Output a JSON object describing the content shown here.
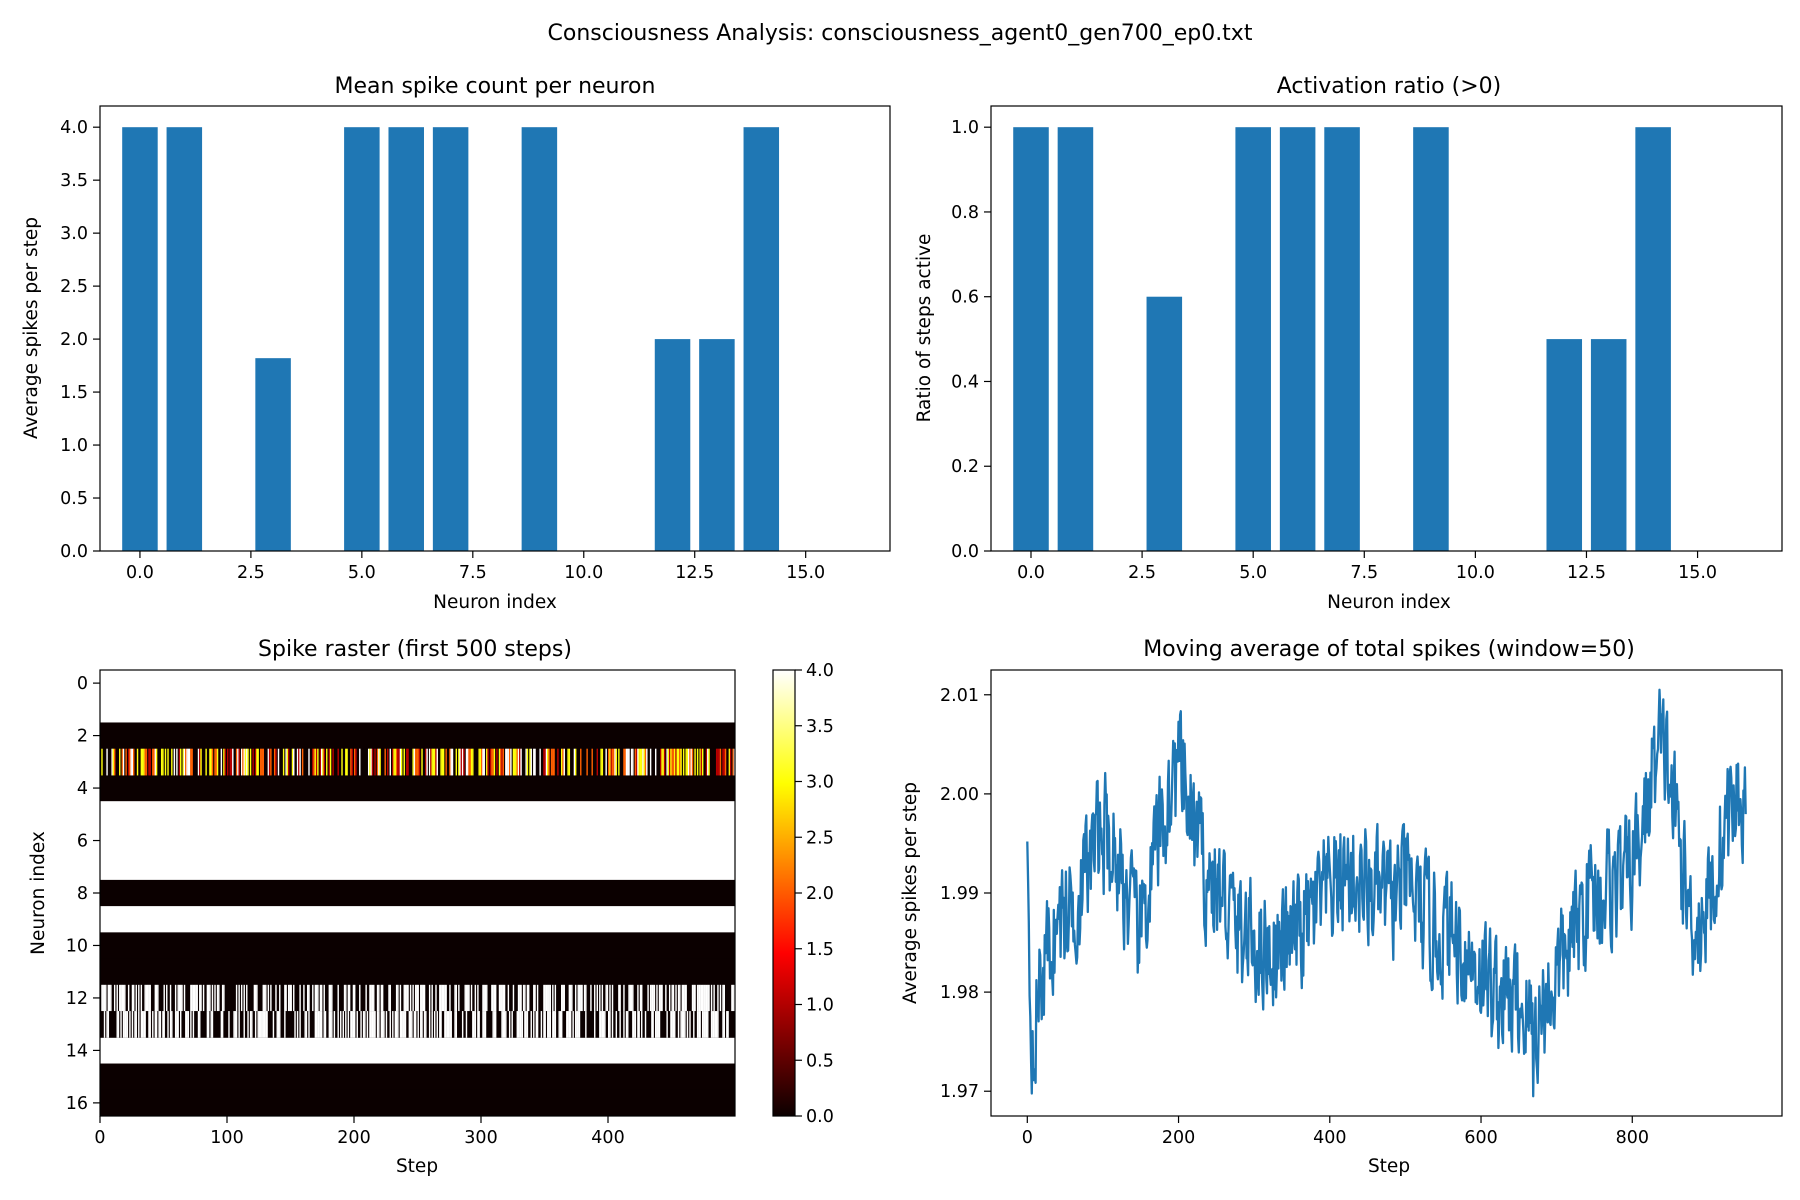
{
  "figure": {
    "title": "Consciousness Analysis: consciousness_agent0_gen700_ep0.txt"
  },
  "colors": {
    "bar": "#1f77b4",
    "line": "#1f77b4"
  },
  "chart_data": [
    {
      "type": "bar",
      "title": "Mean spike count per neuron",
      "xlabel": "Neuron index",
      "ylabel": "Average spikes per step",
      "categories": [
        0,
        1,
        2,
        3,
        4,
        5,
        6,
        7,
        8,
        9,
        10,
        11,
        12,
        13,
        14,
        15,
        16
      ],
      "values": [
        4,
        4,
        0,
        1.82,
        0,
        4,
        4,
        4,
        0,
        4,
        0,
        0,
        2,
        2,
        4,
        0,
        0
      ],
      "xlim": [
        -0.9,
        16.9
      ],
      "ylim": [
        0,
        4.2
      ],
      "xticks": [
        0,
        2.5,
        5,
        7.5,
        10,
        12.5,
        15
      ],
      "xtick_labels": [
        "0.0",
        "2.5",
        "5.0",
        "7.5",
        "10.0",
        "12.5",
        "15.0"
      ],
      "yticks": [
        0,
        0.5,
        1,
        1.5,
        2,
        2.5,
        3,
        3.5,
        4
      ],
      "ytick_labels": [
        "0.0",
        "0.5",
        "1.0",
        "1.5",
        "2.0",
        "2.5",
        "3.0",
        "3.5",
        "4.0"
      ],
      "grid": false
    },
    {
      "type": "bar",
      "title": "Activation ratio (>0)",
      "xlabel": "Neuron index",
      "ylabel": "Ratio of steps active",
      "categories": [
        0,
        1,
        2,
        3,
        4,
        5,
        6,
        7,
        8,
        9,
        10,
        11,
        12,
        13,
        14,
        15,
        16
      ],
      "values": [
        1,
        1,
        0,
        0.6,
        0,
        1,
        1,
        1,
        0,
        1,
        0,
        0,
        0.5,
        0.5,
        1,
        0,
        0
      ],
      "xlim": [
        -0.9,
        16.9
      ],
      "ylim": [
        0,
        1.05
      ],
      "xticks": [
        0,
        2.5,
        5,
        7.5,
        10,
        12.5,
        15
      ],
      "xtick_labels": [
        "0.0",
        "2.5",
        "5.0",
        "7.5",
        "10.0",
        "12.5",
        "15.0"
      ],
      "yticks": [
        0,
        0.2,
        0.4,
        0.6,
        0.8,
        1.0
      ],
      "ytick_labels": [
        "0.0",
        "0.2",
        "0.4",
        "0.6",
        "0.8",
        "1.0"
      ],
      "grid": false
    },
    {
      "type": "heatmap",
      "title": "Spike raster (first 500 steps)",
      "xlabel": "Step",
      "ylabel": "Neuron index",
      "steps": 500,
      "neurons": 17,
      "colormap": "hot",
      "color_range": [
        0,
        4
      ],
      "constant_rows": [
        {
          "neuron": 0,
          "value": 4
        },
        {
          "neuron": 1,
          "value": 4
        },
        {
          "neuron": 2,
          "value": 0
        },
        {
          "neuron": 4,
          "value": 0
        },
        {
          "neuron": 5,
          "value": 4
        },
        {
          "neuron": 6,
          "value": 4
        },
        {
          "neuron": 7,
          "value": 4
        },
        {
          "neuron": 8,
          "value": 0
        },
        {
          "neuron": 9,
          "value": 4
        },
        {
          "neuron": 10,
          "value": 0
        },
        {
          "neuron": 11,
          "value": 0
        },
        {
          "neuron": 14,
          "value": 4
        },
        {
          "neuron": 15,
          "value": 0
        },
        {
          "neuron": 16,
          "value": 0
        }
      ],
      "varying_rows": [
        {
          "neuron": 3,
          "mean": 1.82,
          "active_ratio": 0.6
        },
        {
          "neuron": 12,
          "mean": 2,
          "active_ratio": 0.5,
          "values": [
            0,
            4
          ]
        },
        {
          "neuron": 13,
          "mean": 2,
          "active_ratio": 0.5,
          "values": [
            0,
            4
          ]
        }
      ],
      "xticks": [
        0,
        100,
        200,
        300,
        400
      ],
      "xtick_labels": [
        "0",
        "100",
        "200",
        "300",
        "400"
      ],
      "yticks": [
        0,
        2,
        4,
        6,
        8,
        10,
        12,
        14,
        16
      ],
      "ytick_labels": [
        "0",
        "2",
        "4",
        "6",
        "8",
        "10",
        "12",
        "14",
        "16"
      ],
      "colorbar_ticks": [
        0,
        0.5,
        1,
        1.5,
        2,
        2.5,
        3,
        3.5,
        4
      ],
      "colorbar_tick_labels": [
        "0.0",
        "0.5",
        "1.0",
        "1.5",
        "2.0",
        "2.5",
        "3.0",
        "3.5",
        "4.0"
      ]
    },
    {
      "type": "line",
      "title": "Moving average of total spikes (window=50)",
      "xlabel": "Step",
      "ylabel": "Average spikes per step",
      "x_range": [
        0,
        950
      ],
      "xlim": [
        -48,
        998
      ],
      "ylim": [
        1.9675,
        2.0125
      ],
      "anchor_points": [
        [
          0,
          1.9952
        ],
        [
          5,
          1.975
        ],
        [
          15,
          1.98
        ],
        [
          30,
          1.985
        ],
        [
          50,
          1.988
        ],
        [
          70,
          1.99
        ],
        [
          90,
          1.995
        ],
        [
          105,
          1.996
        ],
        [
          125,
          1.992
        ],
        [
          145,
          1.985
        ],
        [
          165,
          1.992
        ],
        [
          180,
          1.997
        ],
        [
          200,
          2.003
        ],
        [
          215,
          1.998
        ],
        [
          235,
          1.992
        ],
        [
          255,
          1.99
        ],
        [
          280,
          1.986
        ],
        [
          305,
          1.985
        ],
        [
          330,
          1.984
        ],
        [
          360,
          1.986
        ],
        [
          380,
          1.988
        ],
        [
          400,
          1.99
        ],
        [
          420,
          1.992
        ],
        [
          440,
          1.991
        ],
        [
          460,
          1.99
        ],
        [
          480,
          1.989
        ],
        [
          500,
          1.991
        ],
        [
          520,
          1.988
        ],
        [
          540,
          1.986
        ],
        [
          560,
          1.986
        ],
        [
          580,
          1.984
        ],
        [
          600,
          1.982
        ],
        [
          620,
          1.98
        ],
        [
          640,
          1.979
        ],
        [
          660,
          1.978
        ],
        [
          670,
          1.976
        ],
        [
          690,
          1.98
        ],
        [
          720,
          1.985
        ],
        [
          745,
          1.99
        ],
        [
          770,
          1.991
        ],
        [
          790,
          1.991
        ],
        [
          810,
          1.995
        ],
        [
          830,
          2.003
        ],
        [
          845,
          2.004
        ],
        [
          860,
          1.996
        ],
        [
          875,
          1.988
        ],
        [
          890,
          1.987
        ],
        [
          905,
          1.99
        ],
        [
          920,
          1.996
        ],
        [
          935,
          1.999
        ],
        [
          945,
          2.0
        ],
        [
          950,
          1.9975
        ]
      ],
      "min_point": [
        669,
        1.9695
      ],
      "max_point": [
        836,
        2.0105
      ],
      "xticks": [
        0,
        200,
        400,
        600,
        800
      ],
      "xtick_labels": [
        "0",
        "200",
        "400",
        "600",
        "800"
      ],
      "yticks": [
        1.97,
        1.98,
        1.99,
        2.0,
        2.01
      ],
      "ytick_labels": [
        "1.97",
        "1.98",
        "1.99",
        "2.00",
        "2.01"
      ],
      "grid": false
    }
  ]
}
